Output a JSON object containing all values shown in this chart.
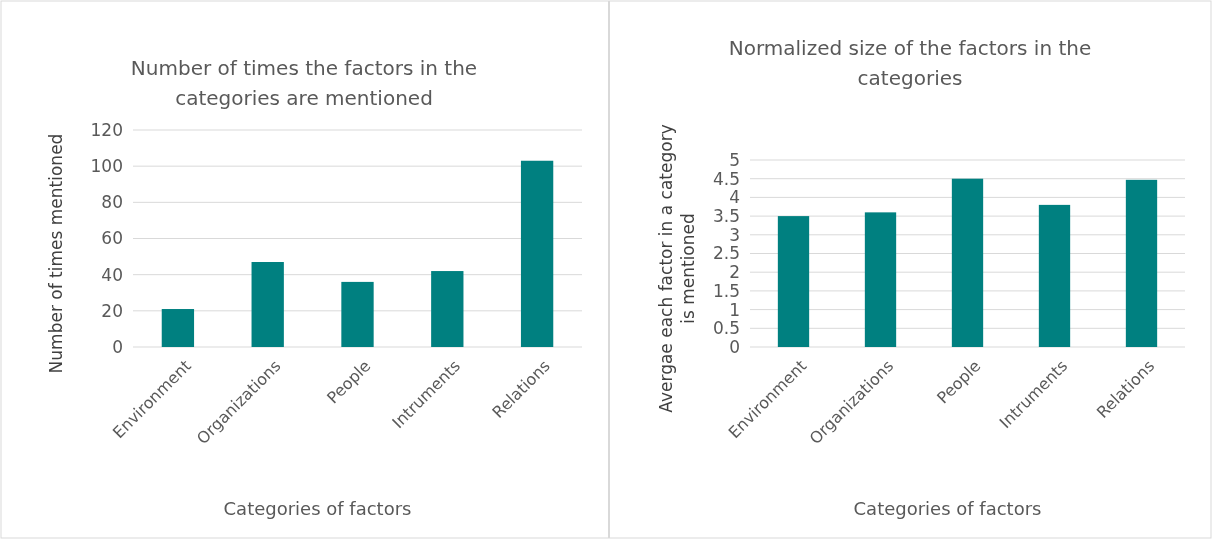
{
  "chart_data": [
    {
      "type": "bar",
      "title": "Number of times the factors in the categories are mentioned",
      "xlabel": "Categories of factors",
      "ylabel": "Number of times mentioned",
      "categories": [
        "Environment",
        "Organizations",
        "People",
        "Intruments",
        "Relations"
      ],
      "values": [
        21,
        47,
        36,
        42,
        103
      ],
      "color": "#008080",
      "ylim": [
        0,
        120
      ],
      "yticks": [
        0,
        20,
        40,
        60,
        80,
        100,
        120
      ],
      "grid": "y"
    },
    {
      "type": "bar",
      "title": "Normalized size of the factors in the categories",
      "xlabel": "Categories of factors",
      "ylabel": "Avergae each factor in a category is mentioned",
      "categories": [
        "Environment",
        "Organizations",
        "People",
        "Intruments",
        "Relations"
      ],
      "values": [
        3.5,
        3.6,
        4.5,
        3.8,
        4.47
      ],
      "color": "#008080",
      "ylim": [
        0,
        5
      ],
      "yticks": [
        0,
        0.5,
        1,
        1.5,
        2,
        2.5,
        3,
        3.5,
        4,
        4.5,
        5
      ],
      "grid": "y"
    }
  ]
}
